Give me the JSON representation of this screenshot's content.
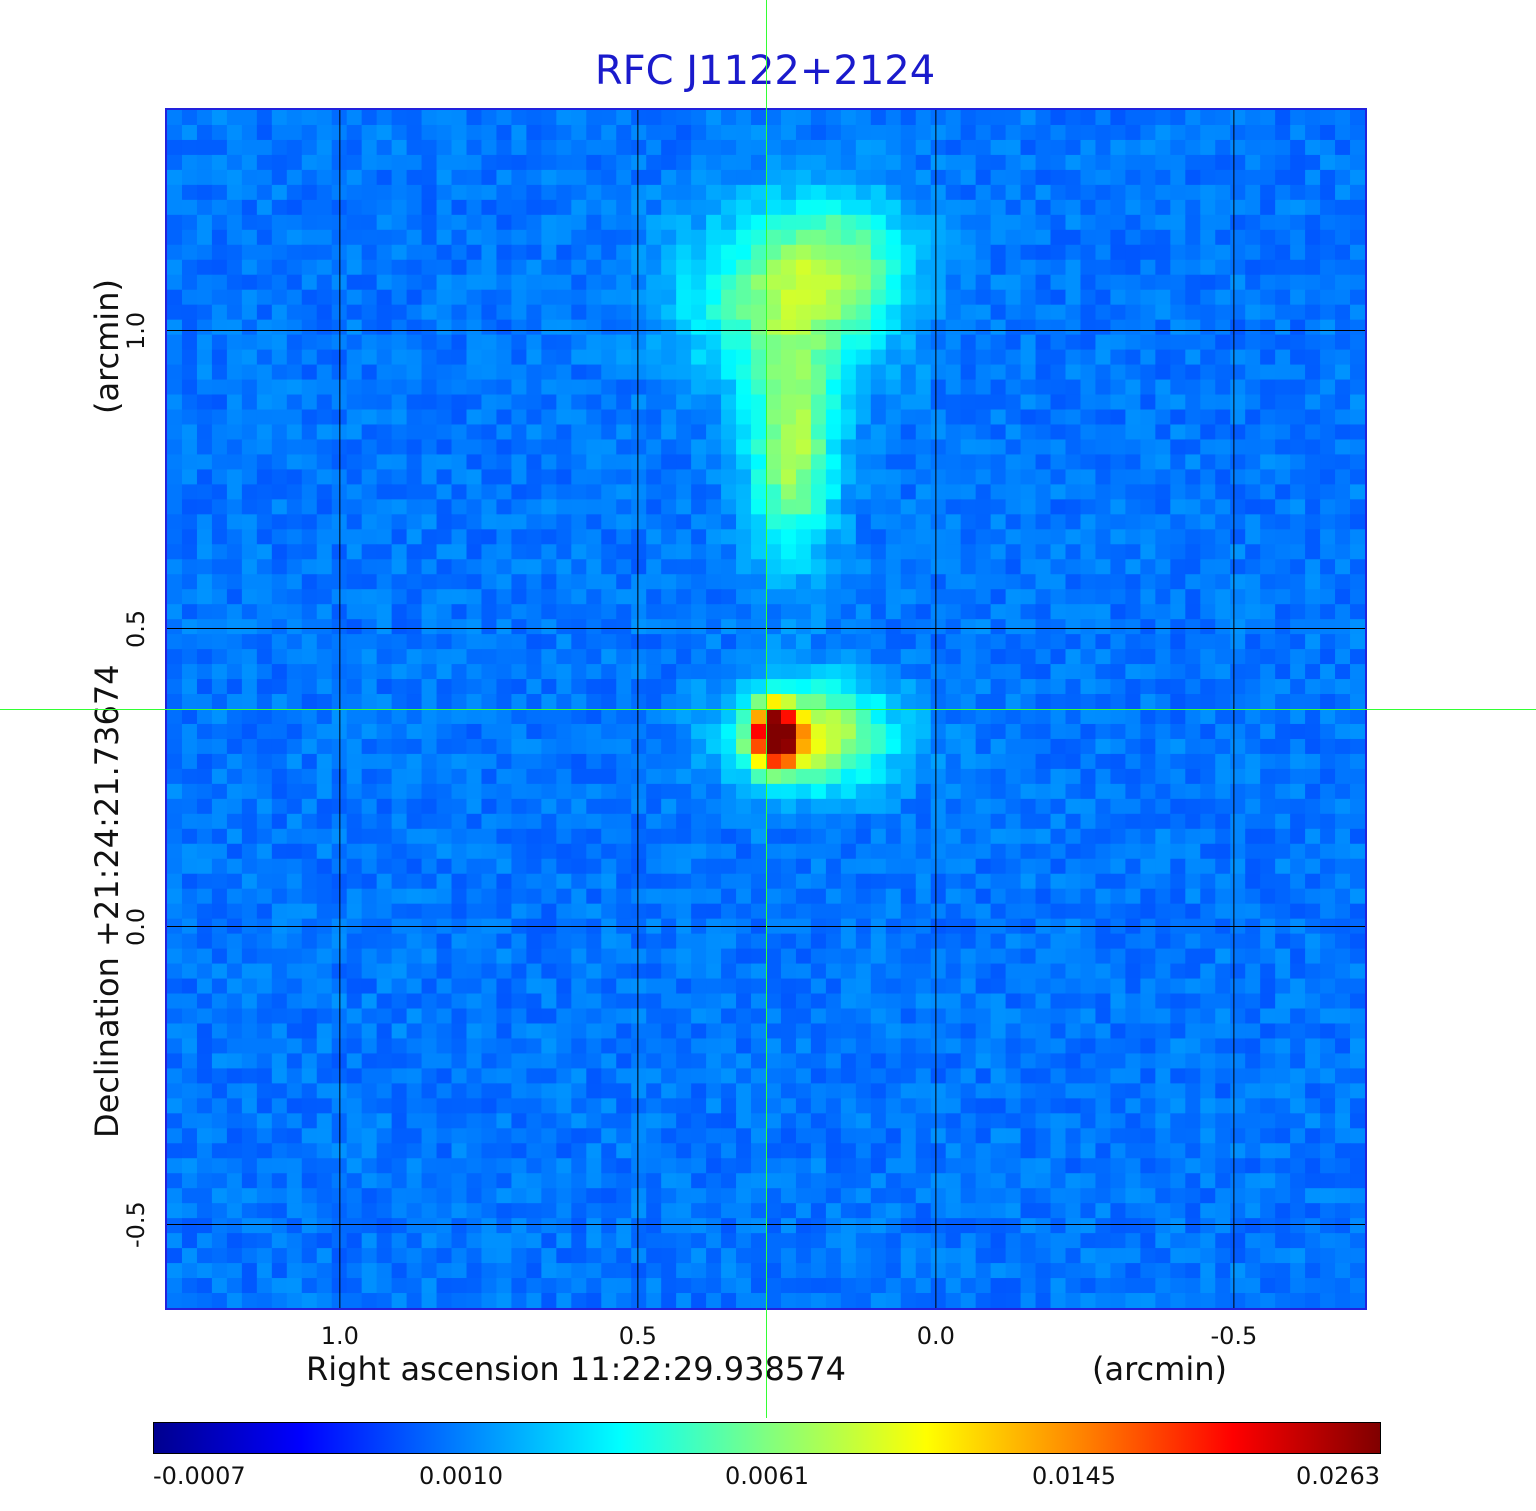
{
  "chart_data": {
    "type": "heatmap",
    "title": "RFC J1122+2124",
    "xlabel": "Right ascension  11:22:29.938574",
    "xunit": "(arcmin)",
    "ylabel": "Declination  +21:24:21.73674",
    "yunit": "(arcmin)",
    "xlim": [
      1.29,
      -0.72
    ],
    "ylim": [
      -0.64,
      1.37
    ],
    "x_ticks": [
      {
        "value": 1.0,
        "label": "1.0"
      },
      {
        "value": 0.5,
        "label": "0.5"
      },
      {
        "value": 0.0,
        "label": "0.0"
      },
      {
        "value": -0.5,
        "label": "-0.5"
      }
    ],
    "y_ticks": [
      {
        "value": 1.0,
        "label": "1.0"
      },
      {
        "value": 0.5,
        "label": "0.5"
      },
      {
        "value": 0.0,
        "label": "0.0"
      },
      {
        "value": -0.5,
        "label": "-0.5"
      }
    ],
    "grid": true,
    "crosshair": {
      "x": 0.285,
      "y": 0.365
    },
    "colorbar": {
      "ticks": [
        "-0.0007",
        "0.0010",
        "0.0061",
        "0.0145",
        "0.0263"
      ]
    },
    "sources": [
      {
        "x": 0.27,
        "y": 0.32,
        "sx": 0.025,
        "sy": 0.035,
        "amp": 1.0
      },
      {
        "x": 0.21,
        "y": 0.32,
        "sx": 0.09,
        "sy": 0.06,
        "amp": 0.48
      },
      {
        "x": 0.24,
        "y": 0.8,
        "sx": 0.05,
        "sy": 0.12,
        "amp": 0.4
      },
      {
        "x": 0.26,
        "y": 1.05,
        "sx": 0.12,
        "sy": 0.1,
        "amp": 0.3
      },
      {
        "x": 0.16,
        "y": 1.12,
        "sx": 0.08,
        "sy": 0.08,
        "amp": 0.22
      }
    ]
  }
}
